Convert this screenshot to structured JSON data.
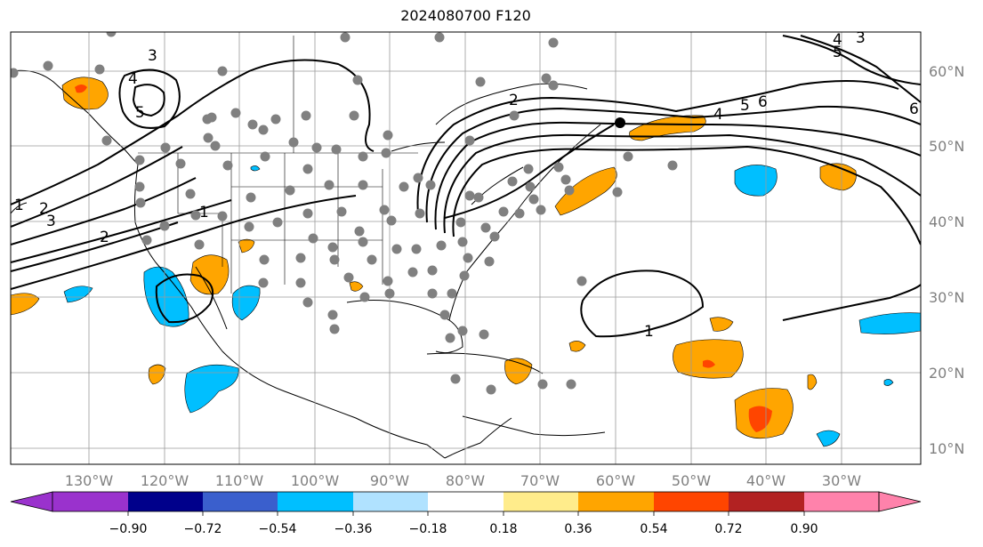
{
  "title": "2024080700 F120",
  "map": {
    "lon_ticks": [
      "130°W",
      "120°W",
      "110°W",
      "100°W",
      "90°W",
      "80°W",
      "70°W",
      "60°W",
      "50°W",
      "40°W",
      "30°W"
    ],
    "lat_ticks": [
      "60°N",
      "50°N",
      "40°N",
      "30°N",
      "20°N",
      "10°N"
    ],
    "extent": {
      "lon_min": -137,
      "lon_max": -25,
      "lat_min": 8,
      "lat_max": 65
    },
    "gridlines": true,
    "contour_labels": [
      "1",
      "2",
      "3",
      "4",
      "5",
      "6"
    ],
    "station_markers": "gray-dot"
  },
  "colorbar": {
    "ticks": [
      "−0.90",
      "−0.72",
      "−0.54",
      "−0.36",
      "−0.18",
      "0.18",
      "0.36",
      "0.54",
      "0.72",
      "0.90"
    ],
    "colors": [
      "#9a32cd",
      "#00008b",
      "#3a5fcd",
      "#00bfff",
      "#b0e2ff",
      "#ffffff",
      "#ffec8b",
      "#ffa500",
      "#ff4500",
      "#b22222",
      "#ff82ab"
    ],
    "extend": "both"
  },
  "colors": {
    "positive_mid": "#ffa500",
    "positive_high": "#ff4500",
    "negative_mid": "#00bfff",
    "station": "#808080",
    "contour": "#000000"
  }
}
